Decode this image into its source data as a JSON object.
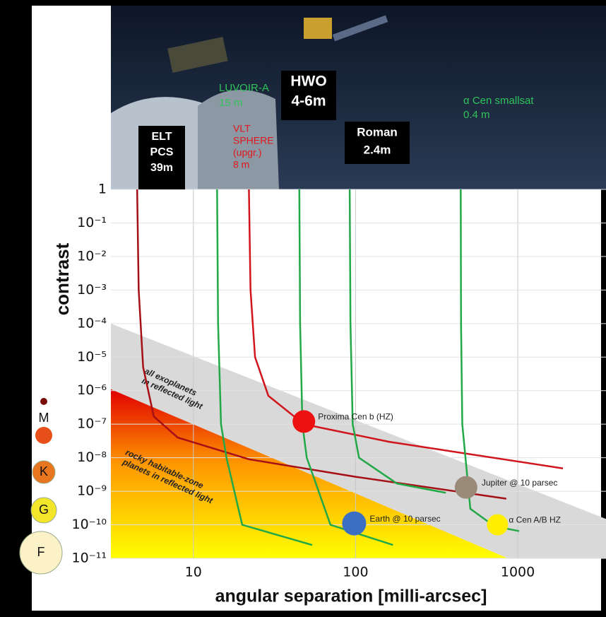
{
  "chart_data": {
    "type": "line",
    "xlabel": "angular separation [milli-arcsec]",
    "ylabel": "contrast",
    "log_x": true,
    "log_y": true,
    "grid": true,
    "xlim": [
      3.1,
      3500
    ],
    "ylim": [
      1e-11,
      1
    ],
    "xticks": [
      10,
      100,
      1000
    ],
    "yticks": [
      {
        "value": 1e-11,
        "label": "10⁻¹¹"
      },
      {
        "value": 1e-10,
        "label": "10⁻¹⁰"
      },
      {
        "value": 1e-09,
        "label": "10⁻⁹"
      },
      {
        "value": 1e-08,
        "label": "10⁻⁸"
      },
      {
        "value": 1e-07,
        "label": "10⁻⁷"
      },
      {
        "value": 1e-06,
        "label": "10⁻⁶"
      },
      {
        "value": 1e-05,
        "label": "10⁻⁵"
      },
      {
        "value": 0.0001,
        "label": "10⁻⁴"
      },
      {
        "value": 0.001,
        "label": "10⁻³"
      },
      {
        "value": 0.01,
        "label": "10⁻²"
      },
      {
        "value": 0.1,
        "label": "10⁻¹"
      },
      1
    ],
    "series": [
      {
        "label": [
          "ELT",
          "PCS",
          "39m"
        ],
        "color": "#a50f15",
        "x": [
          4.5,
          4.6,
          4.9,
          5.7,
          8,
          22,
          100,
          850
        ],
        "values": [
          1,
          0.001,
          5e-06,
          1.7e-07,
          4e-08,
          9e-09,
          2.7e-09,
          6e-10
        ]
      },
      {
        "label": [
          "VLT",
          "SPHERE",
          "(upgr.)",
          "8 m"
        ],
        "color": "#d0161c",
        "x": [
          22,
          22.5,
          24,
          29,
          48,
          160,
          1900
        ],
        "values": [
          1,
          0.001,
          1e-05,
          7e-07,
          1e-07,
          3e-08,
          4.8e-09
        ]
      },
      {
        "label": [
          "LUVOIR-A",
          "15 m"
        ],
        "color": "#23a848",
        "x": [
          14,
          14.2,
          14.8,
          16,
          20,
          54
        ],
        "values": [
          1,
          0.0001,
          1e-07,
          1e-08,
          1e-10,
          2.5e-11
        ]
      },
      {
        "label": [
          "HWO",
          "4-6m"
        ],
        "color": "#23a848",
        "x": [
          45,
          45.5,
          47,
          50,
          70,
          170
        ],
        "values": [
          1,
          0.0001,
          1e-07,
          1e-08,
          1e-10,
          2.5e-11
        ]
      },
      {
        "label": [
          "Roman",
          "2.4m"
        ],
        "color": "#23a848",
        "x": [
          92,
          93,
          96,
          105,
          180,
          360
        ],
        "values": [
          1,
          0.0001,
          1e-07,
          1e-08,
          1.7e-09,
          9e-10
        ]
      },
      {
        "label": [
          "α Cen smallsat",
          "0.4 m"
        ],
        "color": "#23a848",
        "x": [
          445,
          447,
          455,
          510,
          720,
          1020
        ],
        "values": [
          1,
          0.0001,
          1e-07,
          3e-10,
          9e-11,
          6.5e-11
        ]
      }
    ],
    "regions": [
      {
        "label": [
          "all exoplanets",
          "in reflected light"
        ],
        "color": "#d9d9d9",
        "x": [
          3.1,
          3500,
          3500,
          870,
          3.1
        ],
        "values": [
          0.0001,
          1.5e-10,
          1e-11,
          1e-11,
          1.1e-06
        ]
      },
      {
        "label": [
          "rocky habitable-zone",
          "planets in reflected light"
        ],
        "colors": [
          "#e00000",
          "#ffff00"
        ],
        "x": [
          3.1,
          870,
          3.1
        ],
        "values": [
          1.1e-06,
          1e-11,
          1e-11
        ]
      }
    ],
    "points": [
      {
        "label": "Proxima Cen b (HZ)",
        "x": 48,
        "value": 1.2e-07,
        "color": "#ee1111"
      },
      {
        "label": "Jupiter @ 10 parsec",
        "x": 480,
        "value": 1.3e-09,
        "color": "#9a8a78"
      },
      {
        "label": "Earth @ 10 parsec",
        "x": 98,
        "value": 1.1e-10,
        "color": "#3a6fc4"
      },
      {
        "label": "α Cen A/B HZ",
        "x": 750,
        "value": 1e-10,
        "color": "#ffee00"
      }
    ],
    "star_types": [
      "M",
      "K",
      "G",
      "F"
    ]
  }
}
